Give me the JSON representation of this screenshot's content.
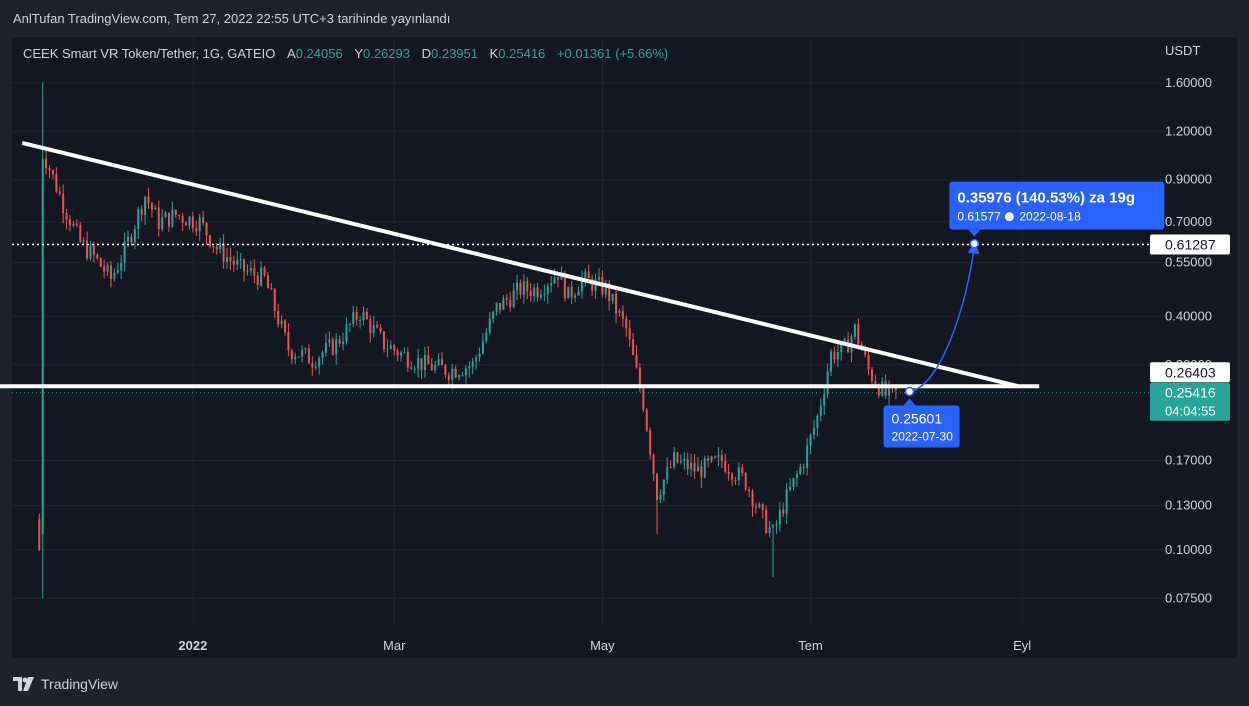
{
  "header": {
    "publish_text": "AnlTufan TradingView.com, Tem 27, 2022 22:55 UTC+3 tarihinde yayınlandı"
  },
  "symbol_info": {
    "title": "CEEK Smart VR Token/Tether, 1G, GATEIO",
    "open_label": "A",
    "open_value": "0.24056",
    "high_label": "Y",
    "high_value": "0.26293",
    "low_label": "D",
    "low_value": "0.23951",
    "close_label": "K",
    "close_value": "0.25416",
    "change": "+0.01361 (+5.66%)"
  },
  "footer": {
    "brand": "TradingView"
  },
  "colors": {
    "up": "#26a69a",
    "down": "#ef5350",
    "background": "#131722",
    "grid": "#1f2330",
    "trendline": "#ffffff",
    "projection": "#2962ff"
  },
  "chart_data": {
    "type": "candlestick",
    "scale": "log",
    "currency": "USDT",
    "y_ticks": [
      "1.60000",
      "1.20000",
      "0.90000",
      "0.70000",
      "0.55000",
      "0.40000",
      "0.30000",
      "0.17000",
      "0.13000",
      "0.10000",
      "0.07500"
    ],
    "x_ticks": [
      "2022",
      "Mar",
      "May",
      "Tem",
      "Eyl"
    ],
    "x_range": [
      "2021-11-09",
      "2022-10-07"
    ],
    "y_range": [
      0.064,
      2.1
    ],
    "candles_path": [
      [
        "2021-11-17",
        0.1
      ],
      [
        "2021-11-18",
        1.07
      ],
      [
        "2021-11-24",
        0.78
      ],
      [
        "2021-11-29",
        0.62
      ],
      [
        "2021-12-03",
        0.57
      ],
      [
        "2021-12-08",
        0.5
      ],
      [
        "2021-12-12",
        0.59
      ],
      [
        "2021-12-18",
        0.82
      ],
      [
        "2021-12-22",
        0.7
      ],
      [
        "2021-12-27",
        0.73
      ],
      [
        "2022-01-03",
        0.7
      ],
      [
        "2022-01-08",
        0.6
      ],
      [
        "2022-01-15",
        0.53
      ],
      [
        "2022-01-22",
        0.5
      ],
      [
        "2022-01-29",
        0.33
      ],
      [
        "2022-02-05",
        0.31
      ],
      [
        "2022-02-12",
        0.34
      ],
      [
        "2022-02-19",
        0.41
      ],
      [
        "2022-02-26",
        0.34
      ],
      [
        "2022-03-03",
        0.32
      ],
      [
        "2022-03-10",
        0.3
      ],
      [
        "2022-03-17",
        0.29
      ],
      [
        "2022-03-24",
        0.3
      ],
      [
        "2022-03-31",
        0.42
      ],
      [
        "2022-04-07",
        0.47
      ],
      [
        "2022-04-12",
        0.47
      ],
      [
        "2022-04-18",
        0.52
      ],
      [
        "2022-04-21",
        0.45
      ],
      [
        "2022-04-25",
        0.5
      ],
      [
        "2022-05-02",
        0.47
      ],
      [
        "2022-05-08",
        0.37
      ],
      [
        "2022-05-13",
        0.24
      ],
      [
        "2022-05-17",
        0.14
      ],
      [
        "2022-05-22",
        0.17
      ],
      [
        "2022-05-29",
        0.16
      ],
      [
        "2022-06-05",
        0.17
      ],
      [
        "2022-06-12",
        0.15
      ],
      [
        "2022-06-17",
        0.12
      ],
      [
        "2022-06-20",
        0.11
      ],
      [
        "2022-06-23",
        0.13
      ],
      [
        "2022-06-29",
        0.17
      ],
      [
        "2022-07-03",
        0.22
      ],
      [
        "2022-07-07",
        0.32
      ],
      [
        "2022-07-11",
        0.33
      ],
      [
        "2022-07-14",
        0.37
      ],
      [
        "2022-07-18",
        0.29
      ],
      [
        "2022-07-23",
        0.25
      ],
      [
        "2022-07-27",
        0.254
      ]
    ],
    "descending_trendline": {
      "from": [
        "2021-11-12",
        1.12
      ],
      "to": [
        "2022-08-31",
        0.264
      ]
    },
    "horizontal_support": {
      "from": "2021-11-03",
      "to": "2022-09-06",
      "value": 0.264
    },
    "projection": {
      "from": [
        "2022-07-30",
        0.25601
      ],
      "to": [
        "2022-08-18",
        0.61577
      ],
      "label": "0.35976 (140.53%) za 19g",
      "target_price": "0.61577",
      "target_date": "2022-08-18",
      "origin_price": "0.25601",
      "origin_date": "2022-07-30"
    },
    "price_labels": {
      "target_line": "0.61287",
      "support_line": "0.26403",
      "last_price": "0.25416",
      "countdown": "04:04:55"
    }
  }
}
